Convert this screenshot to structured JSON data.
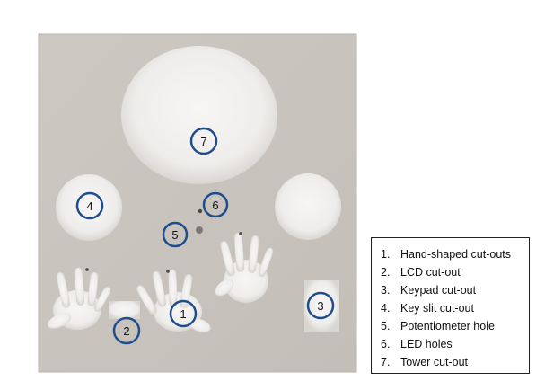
{
  "colors": {
    "plate": "#c9c4be",
    "plate_edge": "#b5b0aa",
    "cutout": "#f2f1ef",
    "cutout_shadow": "#d8d5d1",
    "callout_ring": "#1f4e8c",
    "background": "#ffffff"
  },
  "callouts": {
    "c1": "1",
    "c2": "2",
    "c3": "3",
    "c4": "4",
    "c5": "5",
    "c6": "6",
    "c7": "7"
  },
  "legend": {
    "items": [
      {
        "number": "1.",
        "label": "Hand-shaped cut-outs"
      },
      {
        "number": "2.",
        "label": "LCD cut-out"
      },
      {
        "number": "3.",
        "label": "Keypad cut-out"
      },
      {
        "number": "4.",
        "label": "Key slit cut-out"
      },
      {
        "number": "5.",
        "label": "Potentiometer hole"
      },
      {
        "number": "6.",
        "label": "LED holes"
      },
      {
        "number": "7.",
        "label": "Tower cut-out"
      }
    ]
  }
}
